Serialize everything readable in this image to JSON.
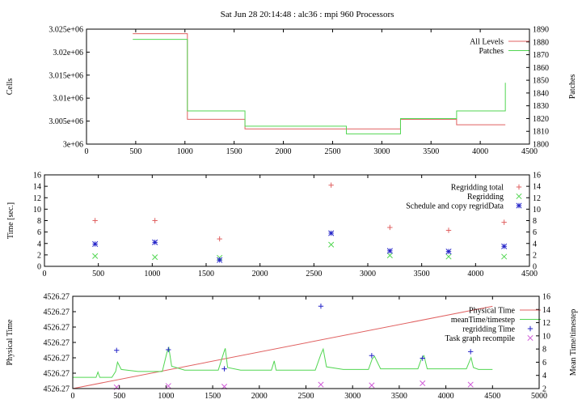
{
  "title": "Sat Jun 28 20:14:48 : alc36 : mpi 960 Processors",
  "colors": {
    "red": "#e06060",
    "green": "#52d652",
    "blue": "#2424c8",
    "magenta": "#d05ad8",
    "ylabel_red": "#c83030",
    "ylabel_green": "#3cbf3c"
  },
  "chart_data": [
    {
      "type": "line",
      "ylabel": "Cells",
      "y2label": "Patches",
      "xlim": [
        0,
        4500
      ],
      "ylim": [
        3000000,
        3025000
      ],
      "y2lim": [
        1800,
        1890
      ],
      "xticks": [
        0,
        500,
        1000,
        1500,
        2000,
        2500,
        3000,
        3500,
        4000,
        4500
      ],
      "xticklabels": [
        "0",
        "500",
        "1000",
        "1500",
        "2000",
        "2500",
        "3000",
        "3500",
        "4000",
        "4500"
      ],
      "yticks": [
        3000000,
        3005000,
        3010000,
        3015000,
        3020000,
        3025000
      ],
      "yticklabels": [
        "3e+06",
        "3.005e+06",
        "3.01e+06",
        "3.015e+06",
        "3.02e+06",
        "3.025e+06"
      ],
      "y2ticks": [
        1800,
        1810,
        1820,
        1830,
        1840,
        1850,
        1860,
        1870,
        1880,
        1890
      ],
      "y2ticklabels": [
        "1800",
        "1810",
        "1820",
        "1830",
        "1840",
        "1850",
        "1860",
        "1870",
        "1880",
        "1890"
      ],
      "series": [
        {
          "name": "All Levels",
          "axis": "y",
          "color": "#e06060",
          "style": "step",
          "x": [
            470,
            1025,
            1610,
            3190,
            3760,
            4255
          ],
          "y": [
            3024000,
            3005400,
            3003300,
            3005400,
            3004200,
            3004200
          ]
        },
        {
          "name": "Patches",
          "axis": "y2",
          "color": "#52d652",
          "style": "step",
          "x": [
            470,
            1025,
            1610,
            2640,
            3190,
            3760,
            4255,
            4255
          ],
          "y": [
            1882,
            1826,
            1814,
            1808,
            1820,
            1826,
            1826,
            1848
          ]
        }
      ]
    },
    {
      "type": "scatter",
      "ylabel": "Time [sec.]",
      "xlim": [
        0,
        4500
      ],
      "ylim": [
        0,
        16
      ],
      "xticks": [
        0,
        500,
        1000,
        1500,
        2000,
        2500,
        3000,
        3500,
        4000,
        4500
      ],
      "xticklabels": [
        "0",
        "500",
        "1000",
        "1500",
        "2000",
        "2500",
        "3000",
        "3500",
        "4000",
        "4500"
      ],
      "yticks": [
        0,
        2,
        4,
        6,
        8,
        10,
        12,
        14,
        16
      ],
      "yticklabels": [
        "0",
        "2",
        "4",
        "6",
        "8",
        "10",
        "12",
        "14",
        "16"
      ],
      "series": [
        {
          "name": "Regridding total",
          "color": "#e06060",
          "marker": "plus",
          "x": [
            470,
            1025,
            1625,
            2660,
            3205,
            3750,
            4265
          ],
          "y": [
            8.0,
            8.0,
            4.8,
            14.2,
            6.8,
            6.3,
            7.7
          ]
        },
        {
          "name": "Regridding",
          "color": "#52d652",
          "marker": "cross",
          "x": [
            470,
            1025,
            1625,
            2660,
            3205,
            3750,
            4265
          ],
          "y": [
            1.8,
            1.6,
            1.5,
            3.8,
            1.9,
            1.7,
            1.7
          ]
        },
        {
          "name": "Schedule and copy regridData",
          "color": "#2424c8",
          "marker": "star",
          "x": [
            470,
            1025,
            1625,
            2660,
            3205,
            3750,
            4265
          ],
          "y": [
            3.9,
            4.2,
            1.1,
            5.8,
            2.7,
            2.6,
            3.5
          ]
        }
      ]
    },
    {
      "type": "line",
      "ylabel": "Physical Time",
      "y2label": "Mean Time/timestep",
      "xlim": [
        0,
        5000
      ],
      "ylim": [
        0,
        6
      ],
      "y2lim": [
        2,
        16
      ],
      "xticks": [
        0,
        500,
        1000,
        1500,
        2000,
        2500,
        3000,
        3500,
        4000,
        4500,
        5000
      ],
      "xticklabels": [
        "0",
        "500",
        "1000",
        "1500",
        "2000",
        "2500",
        "3000",
        "3500",
        "4000",
        "4500",
        "5000"
      ],
      "yticks": [
        0,
        1,
        2,
        3,
        4,
        5,
        6
      ],
      "yticklabels": [
        "4526.27",
        "4526.27",
        "4526.27",
        "4526.27",
        "4526.27",
        "4526.27",
        "4526.27"
      ],
      "y2ticks": [
        2,
        4,
        6,
        8,
        10,
        12,
        14,
        16
      ],
      "y2ticklabels": [
        "2",
        "4",
        "6",
        "8",
        "10",
        "12",
        "14",
        "16"
      ],
      "series": [
        {
          "name": "Physical Time",
          "axis": "y",
          "color": "#e06060",
          "x": [
            0,
            4500
          ],
          "y": [
            0,
            5.35
          ]
        },
        {
          "name": "meanTime/timestep",
          "axis": "y2",
          "color": "#52d652",
          "x": [
            0,
            250,
            270,
            290,
            420,
            460,
            480,
            520,
            700,
            960,
            1010,
            1030,
            1060,
            1200,
            1560,
            1620,
            1635,
            1660,
            1800,
            2130,
            2160,
            2180,
            2600,
            2660,
            2685,
            2720,
            2900,
            3170,
            3210,
            3235,
            3300,
            3700,
            3740,
            3765,
            3800,
            4220,
            4270,
            4295,
            4350,
            4500
          ],
          "y": [
            3.7,
            3.7,
            4.5,
            3.7,
            3.7,
            4.6,
            6.0,
            4.9,
            4.6,
            4.6,
            7.5,
            8.2,
            5.4,
            4.8,
            4.8,
            7.5,
            8.1,
            5.2,
            4.8,
            4.8,
            6.2,
            4.8,
            4.8,
            7.2,
            8.0,
            5.3,
            4.9,
            4.9,
            6.5,
            6.9,
            5.0,
            5.0,
            6.6,
            7.0,
            5.0,
            5.0,
            6.7,
            5.2,
            4.9,
            4.9
          ]
        },
        {
          "name": "regridding Time",
          "axis": "y2",
          "color": "#2424c8",
          "marker": "plus",
          "x": [
            470,
            1025,
            1625,
            2660,
            3205,
            3750,
            4265
          ],
          "y": [
            7.8,
            7.9,
            5.0,
            14.5,
            7.0,
            6.6,
            7.6
          ]
        },
        {
          "name": "Task graph recompile",
          "axis": "y2",
          "color": "#d05ad8",
          "marker": "cross",
          "x": [
            470,
            1025,
            1625,
            2660,
            3205,
            3750,
            4265
          ],
          "y": [
            2.2,
            2.4,
            2.3,
            2.6,
            2.5,
            2.8,
            2.6
          ]
        }
      ]
    }
  ]
}
